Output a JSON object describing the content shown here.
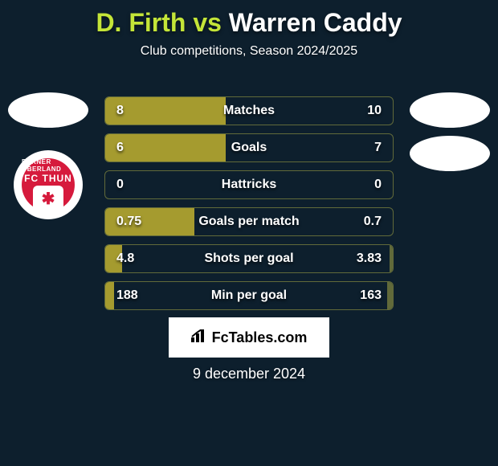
{
  "title": {
    "player1": "D. Firth",
    "vs": "vs",
    "player2": "Warren Caddy",
    "color_p1": "#c4e538",
    "color_p2": "#ffffff"
  },
  "subtitle": "Club competitions, Season 2024/2025",
  "club": {
    "name": "FC THUN",
    "sub": "BERNER OBERLAND",
    "bg_color": "#d61a3c"
  },
  "bars": {
    "left_color": "#a59b2f",
    "right_color": "#616a3a",
    "border_color": "#616a3a",
    "rows": [
      {
        "label": "Matches",
        "left_val": "8",
        "right_val": "10",
        "left_pct": 42,
        "right_pct": 0
      },
      {
        "label": "Goals",
        "left_val": "6",
        "right_val": "7",
        "left_pct": 42,
        "right_pct": 0
      },
      {
        "label": "Hattricks",
        "left_val": "0",
        "right_val": "0",
        "left_pct": 0,
        "right_pct": 0
      },
      {
        "label": "Goals per match",
        "left_val": "0.75",
        "right_val": "0.7",
        "left_pct": 31,
        "right_pct": 0
      },
      {
        "label": "Shots per goal",
        "left_val": "4.8",
        "right_val": "3.83",
        "left_pct": 6,
        "right_pct": 1
      },
      {
        "label": "Min per goal",
        "left_val": "188",
        "right_val": "163",
        "left_pct": 3,
        "right_pct": 2
      }
    ]
  },
  "footer": {
    "brand": "FcTables.com"
  },
  "date": "9 december 2024",
  "colors": {
    "background": "#0d1f2d",
    "text": "#ffffff"
  }
}
